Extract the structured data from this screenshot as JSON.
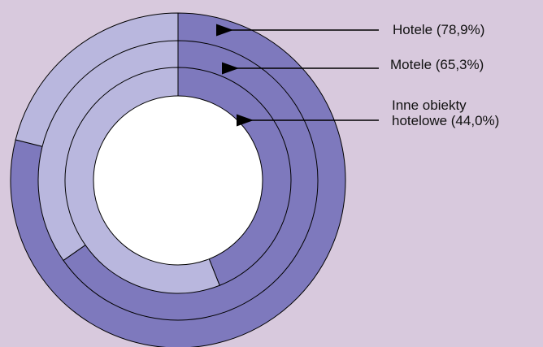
{
  "chart_data": {
    "type": "pie",
    "variant": "concentric-rings",
    "rings": [
      {
        "label": "Hotele (78,9%)",
        "value": 78.9
      },
      {
        "label": "Motele (65,3%)",
        "value": 65.3
      },
      {
        "label": "Inne obiekty\nhotelowe (44,0%)",
        "value": 44.0
      }
    ],
    "colors": {
      "filled": "#7e79bd",
      "remainder": "#b9b7de",
      "hole": "#ffffff",
      "background": "#d8c9dd",
      "stroke": "#000000"
    },
    "title": ""
  }
}
